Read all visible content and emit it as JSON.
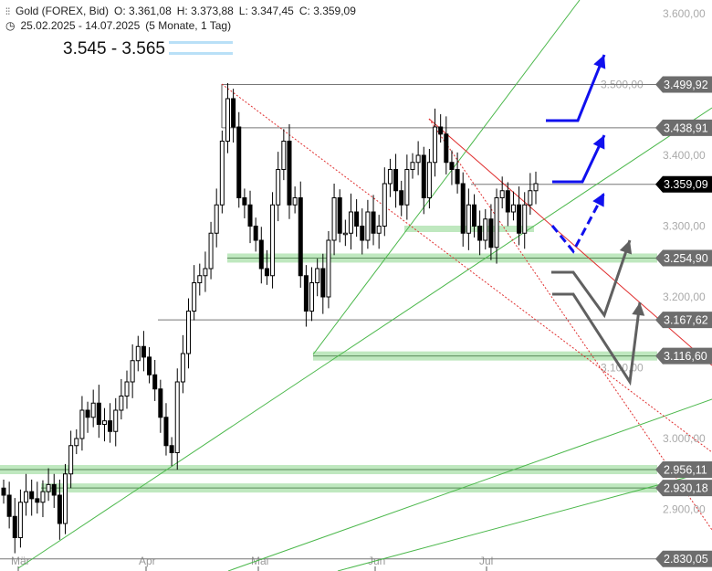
{
  "header": {
    "instrument": "Gold (FOREX, Bid)",
    "open": "O: 3.361,08",
    "high": "H: 3.373,88",
    "low": "L: 3.347,45",
    "close": "C: 3.359,09",
    "period": "25.02.2025 - 14.07.2025",
    "period_info": "(5 Monate, 1 Tag)",
    "instrument_icon": "candlestick-icon",
    "period_icon": "clock-icon"
  },
  "target_label": "3.545 - 3.565",
  "colors": {
    "up": "#ffffff",
    "down": "#000000",
    "zone": "#bfe8bf",
    "trend": "#4cb84c",
    "resistance": "#e03030",
    "arrow_blue": "#1010ee",
    "arrow_gray": "#606060",
    "label_bg": "#6d6d6d",
    "current_bg": "#000000"
  },
  "y_axis": {
    "min": 2800,
    "max": 3620,
    "ticks": [
      "3.600,00",
      "3.500,00",
      "3.400,00",
      "3.300,00",
      "3.200,00",
      "3.100,00",
      "3.000,00",
      "2.900,00"
    ],
    "tick_values": [
      3600,
      3500,
      3400,
      3300,
      3200,
      3100,
      3000,
      2900
    ]
  },
  "x_axis": {
    "months": [
      "Mär",
      "Apr",
      "Mai",
      "Jun",
      "Jul"
    ]
  },
  "levels": [
    {
      "value": 3499.92,
      "label": "3.499,92",
      "zone": false
    },
    {
      "value": 3438.91,
      "label": "3.438,91",
      "zone": false
    },
    {
      "value": 3254.9,
      "label": "3.254,90",
      "zone": true
    },
    {
      "value": 3167.62,
      "label": "3.167,62",
      "zone": false
    },
    {
      "value": 3116.6,
      "label": "3.116,60",
      "zone": true
    },
    {
      "value": 2956.11,
      "label": "2.956,11",
      "zone": true
    },
    {
      "value": 2930.18,
      "label": "2.930,18",
      "zone": true
    },
    {
      "value": 2830.05,
      "label": "2.830,05",
      "zone": false
    }
  ],
  "current_price": {
    "value": 3359.09,
    "label": "3.359,09"
  },
  "closes": [
    2920,
    2890,
    2860,
    2910,
    2925,
    2915,
    2910,
    2925,
    2935,
    2920,
    2880,
    2950,
    2990,
    3000,
    3040,
    3030,
    3050,
    3020,
    3025,
    3010,
    3040,
    3060,
    3080,
    3110,
    3130,
    3115,
    3090,
    3070,
    3030,
    2990,
    2980,
    3080,
    3120,
    3180,
    3220,
    3230,
    3240,
    3290,
    3330,
    3420,
    3480,
    3440,
    3340,
    3330,
    3300,
    3280,
    3240,
    3230,
    3330,
    3380,
    3420,
    3330,
    3340,
    3230,
    3180,
    3220,
    3240,
    3200,
    3280,
    3340,
    3290,
    3290,
    3320,
    3300,
    3280,
    3320,
    3290,
    3300,
    3360,
    3380,
    3350,
    3330,
    3380,
    3390,
    3400,
    3340,
    3390,
    3440,
    3430,
    3390,
    3380,
    3360,
    3290,
    3330,
    3300,
    3280,
    3310,
    3270,
    3340,
    3350,
    3320,
    3330,
    3290,
    3330,
    3350,
    3360
  ]
}
